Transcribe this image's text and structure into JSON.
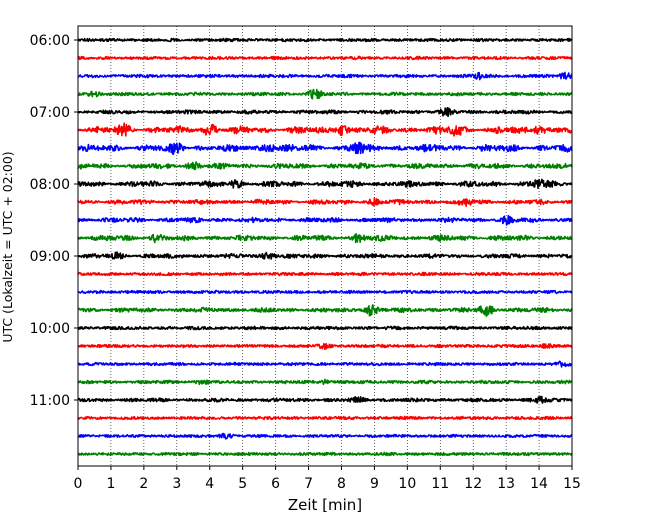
{
  "chart_data": {
    "type": "line",
    "title": "",
    "xlabel": "Zeit  [min]",
    "ylabel": "UTC (Lokalzeit = UTC + 02:00)",
    "xlim": [
      0,
      15
    ],
    "xticks": [
      0,
      1,
      2,
      3,
      4,
      5,
      6,
      7,
      8,
      9,
      10,
      11,
      12,
      13,
      14,
      15
    ],
    "x_grid": "dotted",
    "trace_interval_min": 15,
    "ytick_labels": [
      "06:00",
      "07:00",
      "08:00",
      "09:00",
      "10:00",
      "11:00"
    ],
    "color_cycle": [
      "#000000",
      "#ff0000",
      "#0000ff",
      "#008000"
    ],
    "traces": [
      {
        "start": "06:00",
        "color": "#000000",
        "activity": 0.15,
        "events": []
      },
      {
        "start": "06:15",
        "color": "#ff0000",
        "activity": 0.15,
        "events": []
      },
      {
        "start": "06:30",
        "color": "#0000ff",
        "activity": 0.2,
        "events": [
          {
            "t": 12.2,
            "amp": 2.5
          },
          {
            "t": 14.8,
            "amp": 3
          }
        ]
      },
      {
        "start": "06:45",
        "color": "#008000",
        "activity": 0.2,
        "events": [
          {
            "t": 7.2,
            "amp": 5
          },
          {
            "t": 0.5,
            "amp": 2
          }
        ]
      },
      {
        "start": "07:00",
        "color": "#000000",
        "activity": 0.3,
        "events": [
          {
            "t": 11.2,
            "amp": 3
          }
        ]
      },
      {
        "start": "07:15",
        "color": "#ff0000",
        "activity": 0.85,
        "events": [
          {
            "t": 1.4,
            "amp": 4
          },
          {
            "t": 4.0,
            "amp": 5
          },
          {
            "t": 8.0,
            "amp": 5
          },
          {
            "t": 11.5,
            "amp": 5
          },
          {
            "t": 14.0,
            "amp": 4
          }
        ]
      },
      {
        "start": "07:30",
        "color": "#0000ff",
        "activity": 0.85,
        "events": [
          {
            "t": 3.0,
            "amp": 4
          },
          {
            "t": 5.8,
            "amp": 4
          },
          {
            "t": 8.5,
            "amp": 4
          }
        ]
      },
      {
        "start": "07:45",
        "color": "#008000",
        "activity": 0.55,
        "events": [
          {
            "t": 3.5,
            "amp": 3
          }
        ]
      },
      {
        "start": "08:00",
        "color": "#000000",
        "activity": 0.65,
        "events": [
          {
            "t": 4.8,
            "amp": 3
          },
          {
            "t": 14.0,
            "amp": 3
          }
        ]
      },
      {
        "start": "08:15",
        "color": "#ff0000",
        "activity": 0.45,
        "events": [
          {
            "t": 9.0,
            "amp": 3
          },
          {
            "t": 11.8,
            "amp": 3
          }
        ]
      },
      {
        "start": "08:30",
        "color": "#0000ff",
        "activity": 0.45,
        "events": [
          {
            "t": 13.0,
            "amp": 3
          }
        ]
      },
      {
        "start": "08:45",
        "color": "#008000",
        "activity": 0.6,
        "events": [
          {
            "t": 2.4,
            "amp": 3
          },
          {
            "t": 8.5,
            "amp": 3
          }
        ]
      },
      {
        "start": "09:00",
        "color": "#000000",
        "activity": 0.4,
        "events": [
          {
            "t": 5.8,
            "amp": 3
          },
          {
            "t": 1.2,
            "amp": 2
          }
        ]
      },
      {
        "start": "09:15",
        "color": "#ff0000",
        "activity": 0.15,
        "events": []
      },
      {
        "start": "09:30",
        "color": "#0000ff",
        "activity": 0.15,
        "events": []
      },
      {
        "start": "09:45",
        "color": "#008000",
        "activity": 0.4,
        "events": [
          {
            "t": 8.9,
            "amp": 5
          },
          {
            "t": 12.4,
            "amp": 6
          }
        ]
      },
      {
        "start": "10:00",
        "color": "#000000",
        "activity": 0.2,
        "events": []
      },
      {
        "start": "10:15",
        "color": "#ff0000",
        "activity": 0.15,
        "events": [
          {
            "t": 7.5,
            "amp": 2
          },
          {
            "t": 14.2,
            "amp": 2
          }
        ]
      },
      {
        "start": "10:30",
        "color": "#0000ff",
        "activity": 0.15,
        "events": [
          {
            "t": 14.7,
            "amp": 2
          }
        ]
      },
      {
        "start": "10:45",
        "color": "#008000",
        "activity": 0.2,
        "events": [
          {
            "t": 3.8,
            "amp": 2
          },
          {
            "t": 7.5,
            "amp": 2
          }
        ]
      },
      {
        "start": "11:00",
        "color": "#000000",
        "activity": 0.25,
        "events": [
          {
            "t": 14.0,
            "amp": 3
          },
          {
            "t": 8.5,
            "amp": 2
          }
        ]
      },
      {
        "start": "11:15",
        "color": "#ff0000",
        "activity": 0.15,
        "events": []
      },
      {
        "start": "11:30",
        "color": "#0000ff",
        "activity": 0.12,
        "events": [
          {
            "t": 4.5,
            "amp": 2
          }
        ]
      },
      {
        "start": "11:45",
        "color": "#008000",
        "activity": 0.15,
        "events": []
      }
    ]
  }
}
